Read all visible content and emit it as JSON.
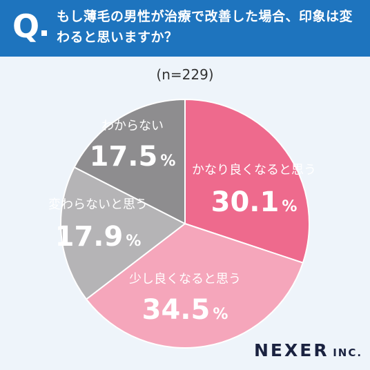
{
  "header": {
    "q_mark": "Q",
    "question": "もし薄毛の男性が治療で改善した場合、印象は変わると思いますか？"
  },
  "sample_size": "(n=229)",
  "logo": {
    "name": "NEXER",
    "suffix": "INC."
  },
  "colors": {
    "header_bg": "#1e74be",
    "slice_1": "#ee6a8d",
    "slice_2": "#f5a6bb",
    "slice_3": "#b5b4b6",
    "slice_4": "#8e8d8f",
    "pink_label": "#ffffff",
    "gray_label": "#ffffff"
  },
  "chart_data": {
    "type": "pie",
    "title": "",
    "start_angle": "12 o'clock",
    "direction": "clockwise",
    "slices": [
      {
        "label": "かなり良くなると思う",
        "value": 30.1,
        "value_text": "30.1",
        "unit": "%"
      },
      {
        "label": "少し良くなると思う",
        "value": 34.5,
        "value_text": "34.5",
        "unit": "%"
      },
      {
        "label": "変わらないと思う",
        "value": 17.9,
        "value_text": "17.9",
        "unit": "%"
      },
      {
        "label": "わからない",
        "value": 17.5,
        "value_text": "17.5",
        "unit": "%"
      }
    ]
  }
}
